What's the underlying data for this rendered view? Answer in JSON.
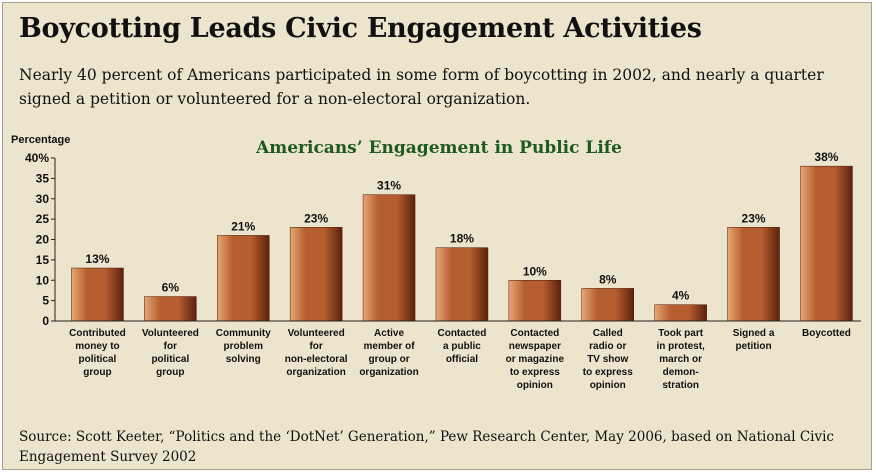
{
  "headline": "Boycotting Leads Civic Engagement Activities",
  "subheadline": "Nearly 40 percent of Americans participated in some form of boycotting in 2002, and nearly a quarter signed a petition or volunteered for a non-electoral organization.",
  "source": "Source: Scott Keeter, “Politics and the ‘DotNet’ Generation,” Pew Research Center, May 2006, based on National Civic Engagement Survey 2002",
  "colors": {
    "background": "#ece4cc",
    "bar_light": "#e7a676",
    "bar_mid": "#b65e2f",
    "bar_dark": "#5a220c",
    "chart_title": "#1e5a1e",
    "text": "#111111"
  },
  "chart_data": {
    "type": "bar",
    "title": "Americans’ Engagement in Public Life",
    "ylabel": "Percentage",
    "ylim": [
      0,
      40
    ],
    "yticks": [
      0,
      5,
      10,
      15,
      20,
      25,
      30,
      35,
      40
    ],
    "ytick_labels": [
      "0",
      "5",
      "10",
      "15",
      "20",
      "25",
      "30",
      "35",
      "40%"
    ],
    "grid": false,
    "categories": [
      [
        "Contributed",
        "money to",
        "political",
        "group"
      ],
      [
        "Volunteered",
        "for",
        "political",
        "group"
      ],
      [
        "Community",
        "problem",
        "solving"
      ],
      [
        "Volunteered",
        "for",
        "non-electoral",
        "organization"
      ],
      [
        "Active",
        "member of",
        "group or",
        "organization"
      ],
      [
        "Contacted",
        "a public",
        "official"
      ],
      [
        "Contacted",
        "newspaper",
        "or magazine",
        "to express",
        "opinion"
      ],
      [
        "Called",
        "radio or",
        "TV show",
        "to express",
        "opinion"
      ],
      [
        "Took part",
        "in protest,",
        "march or",
        "demon-",
        "stration"
      ],
      [
        "Signed a",
        "petition"
      ],
      [
        "Boycotted"
      ]
    ],
    "values": [
      13,
      6,
      21,
      23,
      31,
      18,
      10,
      8,
      4,
      23,
      38
    ],
    "value_labels": [
      "13%",
      "6%",
      "21%",
      "23%",
      "31%",
      "18%",
      "10%",
      "8%",
      "4%",
      "23%",
      "38%"
    ]
  }
}
